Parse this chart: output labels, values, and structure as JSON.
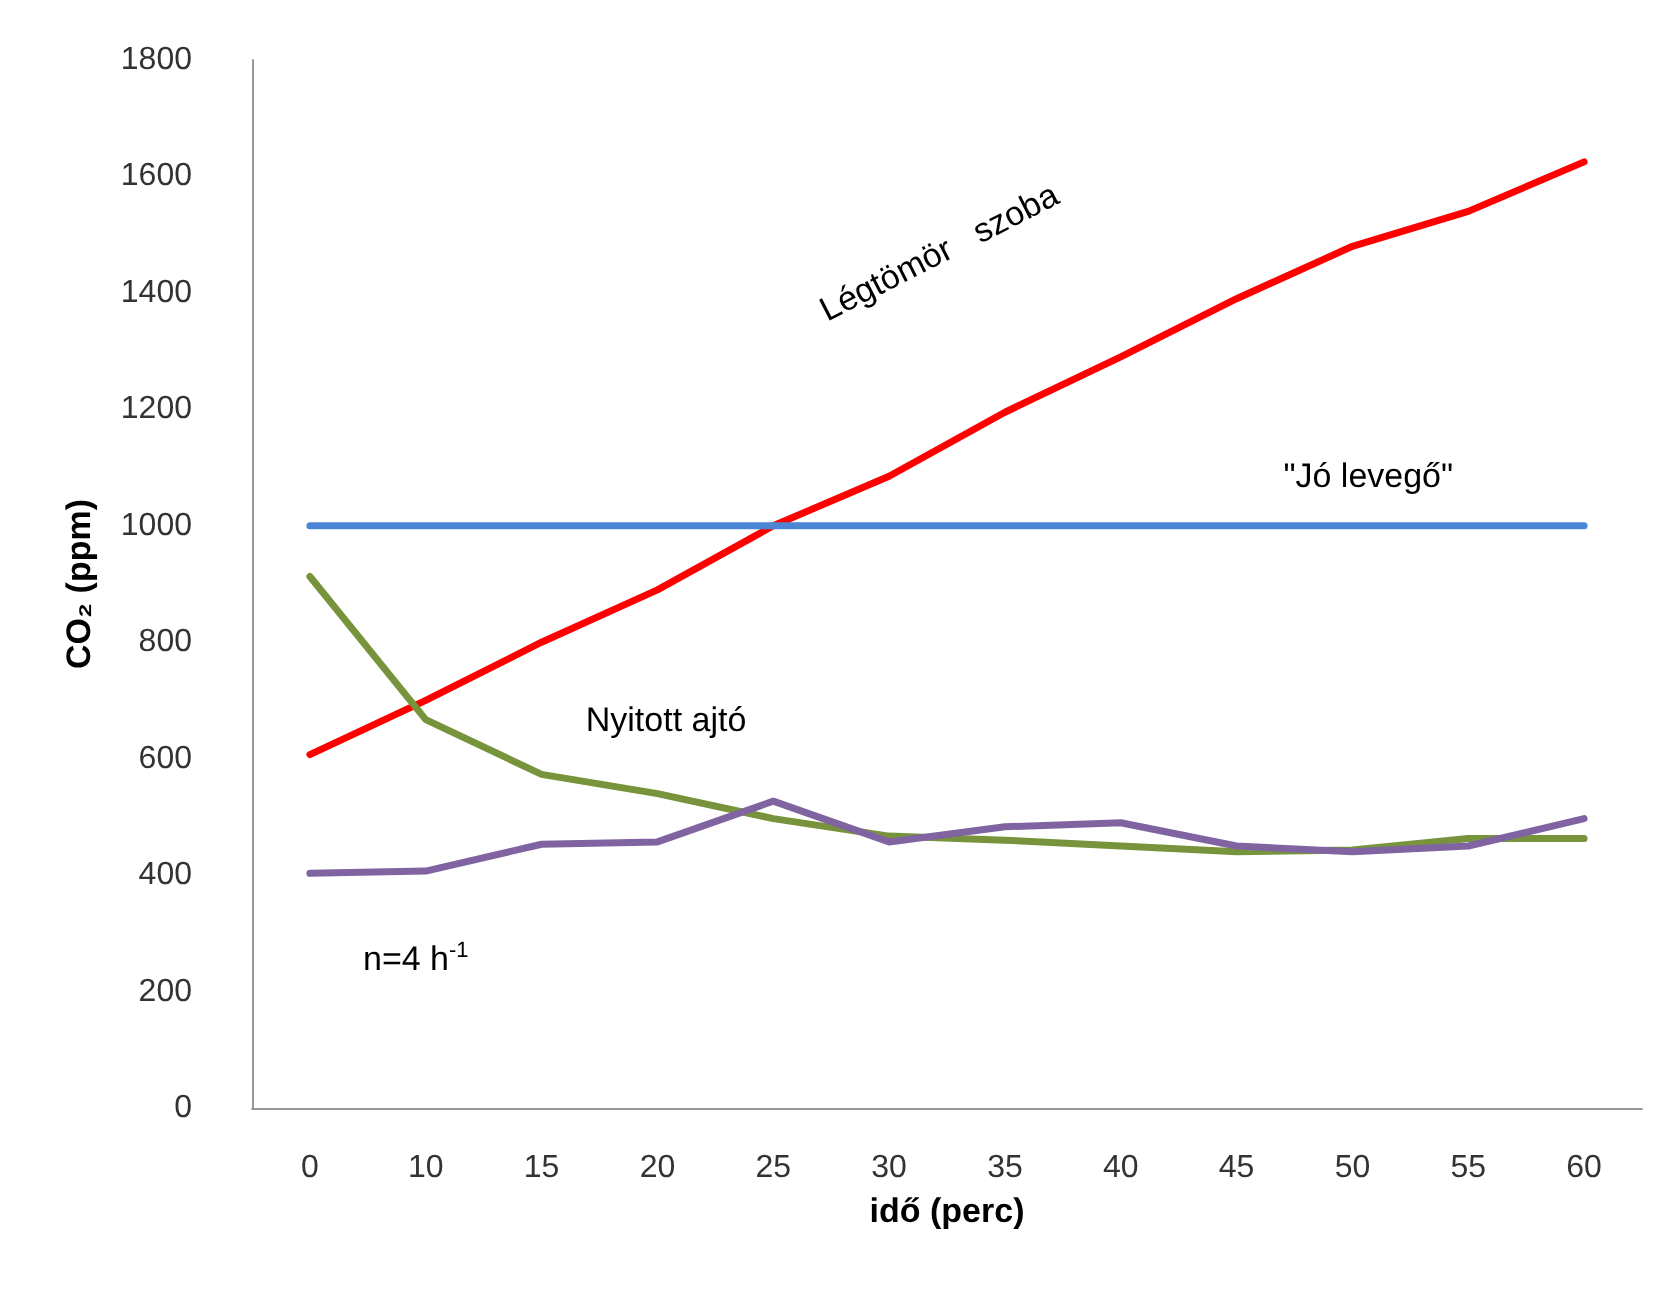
{
  "chart_data": {
    "type": "line",
    "xlabel": "idő (perc)",
    "ylabel": "CO₂ (ppm)",
    "categories": [
      "0",
      "10",
      "15",
      "20",
      "25",
      "30",
      "35",
      "40",
      "45",
      "50",
      "55",
      "60"
    ],
    "series": [
      {
        "name": "Légtömör   szoba",
        "color": "#ff0000",
        "values": [
          607,
          700,
          800,
          890,
          1000,
          1085,
          1195,
          1290,
          1390,
          1480,
          1540,
          1625
        ]
      },
      {
        "name": "\"Jó levegő\"",
        "color": "#4a86d4",
        "values": [
          1000,
          1000,
          1000,
          1000,
          1000,
          1000,
          1000,
          1000,
          1000,
          1000,
          1000,
          1000
        ]
      },
      {
        "name": "Nyitott ajtó",
        "color": "#77933c",
        "values": [
          913,
          667,
          573,
          540,
          497,
          467,
          460,
          450,
          440,
          443,
          463,
          463
        ]
      },
      {
        "name": "n=4 h$^{-1}$",
        "color": "#8064a2",
        "values": [
          403,
          407,
          453,
          457,
          527,
          457,
          483,
          490,
          450,
          440,
          450,
          497
        ]
      }
    ],
    "ylim": [
      0,
      1800
    ],
    "yticks": [
      0,
      200,
      400,
      600,
      800,
      1000,
      1200,
      1400,
      1600,
      1800
    ],
    "grid": false,
    "legend": false,
    "marker": "none",
    "line_style": "solid"
  }
}
